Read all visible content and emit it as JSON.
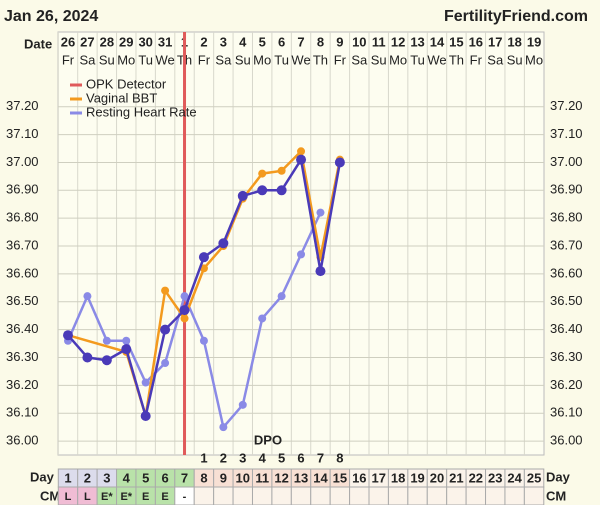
{
  "chart_data": {
    "type": "line",
    "title": "Jan 26, 2024",
    "site": "FertilityFriend.com",
    "date_label": "Date",
    "dates": [
      26,
      27,
      28,
      29,
      30,
      31,
      1,
      2,
      3,
      4,
      5,
      6,
      7,
      8,
      9,
      10,
      11,
      12,
      13,
      14,
      15,
      16,
      17,
      18,
      19
    ],
    "weekdays": [
      "Fr",
      "Sa",
      "Su",
      "Mo",
      "Tu",
      "We",
      "Th",
      "Fr",
      "Sa",
      "Su",
      "Mo",
      "Tu",
      "We",
      "Th",
      "Fr",
      "Sa",
      "Su",
      "Mo",
      "Tu",
      "We",
      "Th",
      "Fr",
      "Sa",
      "Su",
      "Mo"
    ],
    "ylim": [
      35.95,
      37.26
    ],
    "yticks": [
      {
        "value": 36.0,
        "label": "36.00"
      },
      {
        "value": 36.1,
        "label": "36.10"
      },
      {
        "value": 36.2,
        "label": "36.20"
      },
      {
        "value": 36.3,
        "label": "36.30"
      },
      {
        "value": 36.4,
        "label": "36.40"
      },
      {
        "value": 36.5,
        "label": "36.50"
      },
      {
        "value": 36.6,
        "label": "36.60"
      },
      {
        "value": 36.7,
        "label": "36.70"
      },
      {
        "value": 36.8,
        "label": "36.80"
      },
      {
        "value": 36.9,
        "label": "36.90"
      },
      {
        "value": 37.0,
        "label": "37.00"
      },
      {
        "value": 37.1,
        "label": "37.10"
      },
      {
        "value": 37.2,
        "label": "37.20"
      }
    ],
    "grid": true,
    "opk": {
      "name": "OPK Detector",
      "color": "#e05a5a",
      "x": 7
    },
    "temperature": {
      "color": "#4a3ab8",
      "x": [
        1,
        2,
        3,
        4,
        5,
        6,
        7,
        8,
        9,
        10,
        11,
        12,
        13,
        14,
        15
      ],
      "values": [
        36.38,
        36.3,
        36.29,
        36.33,
        36.09,
        36.4,
        36.47,
        36.66,
        36.71,
        36.88,
        36.9,
        36.9,
        37.01,
        36.61,
        37.0
      ]
    },
    "series": [
      {
        "name": "Vaginal BBT",
        "color": "#f39a1e",
        "x": [
          1,
          4,
          5,
          6,
          7,
          8,
          9,
          10,
          11,
          12,
          13,
          14,
          15
        ],
        "values": [
          36.38,
          36.32,
          36.09,
          36.54,
          36.44,
          36.62,
          36.7,
          36.87,
          36.96,
          36.97,
          37.04,
          36.66,
          37.01
        ]
      },
      {
        "name": "Resting Heart Rate",
        "color": "#8a8ae6",
        "x": [
          1,
          2,
          3,
          4,
          5,
          6,
          7,
          8,
          9,
          10,
          11,
          12,
          13,
          14
        ],
        "values": [
          36.36,
          36.52,
          36.36,
          36.36,
          36.21,
          36.28,
          36.52,
          36.36,
          36.05,
          36.13,
          36.44,
          36.52,
          36.67,
          36.82
        ]
      }
    ],
    "dpo_label": "DPO",
    "dpo": [
      null,
      null,
      null,
      null,
      null,
      null,
      null,
      1,
      2,
      3,
      4,
      5,
      6,
      7,
      8,
      null,
      null,
      null,
      null,
      null,
      null,
      null,
      null,
      null,
      null
    ],
    "day_label": "Day",
    "days": [
      1,
      2,
      3,
      4,
      5,
      6,
      7,
      8,
      9,
      10,
      11,
      12,
      13,
      14,
      15,
      16,
      17,
      18,
      19,
      20,
      21,
      22,
      23,
      24,
      25
    ],
    "cm_label": "CM",
    "cm": [
      "L",
      "L",
      "E*",
      "E*",
      "E",
      "E",
      "-",
      null,
      null,
      null,
      null,
      null,
      null,
      null,
      null,
      null,
      null,
      null,
      null,
      null,
      null,
      null,
      null,
      null,
      null
    ]
  }
}
